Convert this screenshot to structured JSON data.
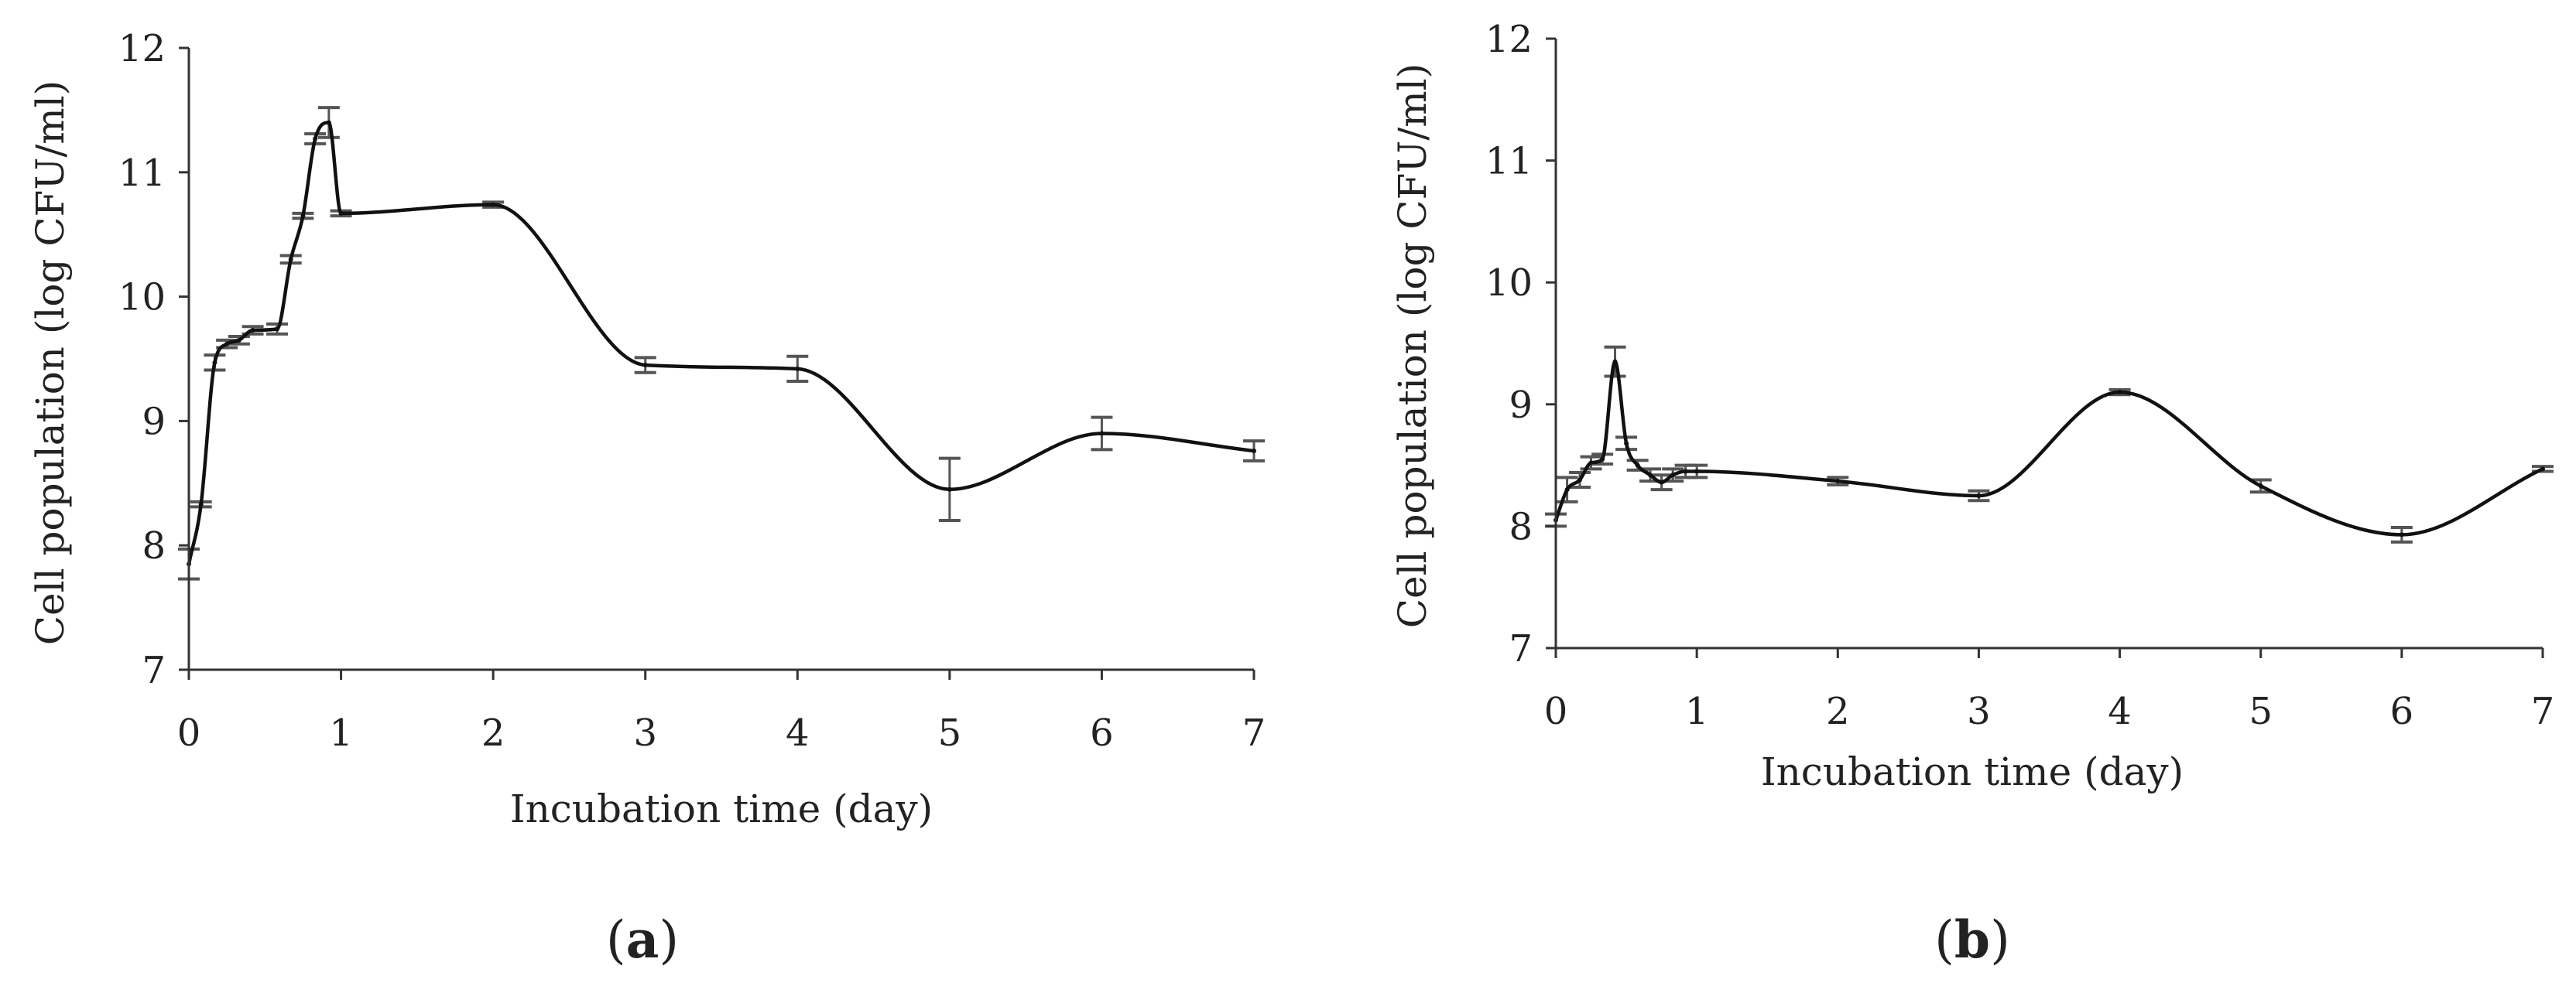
{
  "chart_data": [
    {
      "type": "line",
      "panel_label": {
        "open": "(",
        "letter": "a",
        "close": ")"
      },
      "xlabel": "Incubation time (day)",
      "ylabel": "Cell population (log CFU/ml)",
      "xlim": [
        0,
        7
      ],
      "ylim": [
        7,
        12
      ],
      "xticks": [
        "0",
        "1",
        "2",
        "3",
        "4",
        "5",
        "6",
        "7"
      ],
      "yticks": [
        "7",
        "8",
        "9",
        "10",
        "11",
        "12"
      ],
      "grid": false,
      "legend": "none",
      "series": [
        {
          "points": [
            {
              "x": 0,
              "y": 7.85,
              "err": 0.12
            },
            {
              "x": 0.08,
              "y": 8.33,
              "err": 0.02
            },
            {
              "x": 0.17,
              "y": 9.47,
              "err": 0.06
            },
            {
              "x": 0.25,
              "y": 9.62,
              "err": 0.03
            },
            {
              "x": 0.33,
              "y": 9.65,
              "err": 0.03
            },
            {
              "x": 0.42,
              "y": 9.73,
              "err": 0.03
            },
            {
              "x": 0.58,
              "y": 9.74,
              "err": 0.04
            },
            {
              "x": 0.67,
              "y": 10.3,
              "err": 0.03
            },
            {
              "x": 0.75,
              "y": 10.65,
              "err": 0.02
            },
            {
              "x": 0.83,
              "y": 11.27,
              "err": 0.04
            },
            {
              "x": 0.92,
              "y": 11.4,
              "err": 0.12
            },
            {
              "x": 1,
              "y": 10.67,
              "err": 0.02
            },
            {
              "x": 2,
              "y": 10.74,
              "err": 0.02
            },
            {
              "x": 3,
              "y": 9.45,
              "err": 0.06
            },
            {
              "x": 4,
              "y": 9.42,
              "err": 0.1
            },
            {
              "x": 5,
              "y": 8.45,
              "err": 0.25
            },
            {
              "x": 6,
              "y": 8.9,
              "err": 0.13
            },
            {
              "x": 7,
              "y": 8.76,
              "err": 0.08
            }
          ]
        }
      ]
    },
    {
      "type": "line",
      "panel_label": {
        "open": "(",
        "letter": "b",
        "close": ")"
      },
      "xlabel": "Incubation time (day)",
      "ylabel": "Cell population (log CFU/ml)",
      "xlim": [
        0,
        7
      ],
      "ylim": [
        7,
        12
      ],
      "xticks": [
        "0",
        "1",
        "2",
        "3",
        "4",
        "5",
        "6",
        "7"
      ],
      "yticks": [
        "7",
        "8",
        "9",
        "10",
        "11",
        "12"
      ],
      "grid": false,
      "legend": "none",
      "series": [
        {
          "points": [
            {
              "x": 0,
              "y": 8.05,
              "err": 0.05
            },
            {
              "x": 0.08,
              "y": 8.3,
              "err": 0.1
            },
            {
              "x": 0.17,
              "y": 8.38,
              "err": 0.06
            },
            {
              "x": 0.25,
              "y": 8.52,
              "err": 0.05
            },
            {
              "x": 0.33,
              "y": 8.55,
              "err": 0.04
            },
            {
              "x": 0.42,
              "y": 9.35,
              "err": 0.12
            },
            {
              "x": 0.5,
              "y": 8.68,
              "err": 0.05
            },
            {
              "x": 0.58,
              "y": 8.5,
              "err": 0.04
            },
            {
              "x": 0.67,
              "y": 8.42,
              "err": 0.05
            },
            {
              "x": 0.75,
              "y": 8.36,
              "err": 0.06
            },
            {
              "x": 0.83,
              "y": 8.42,
              "err": 0.05
            },
            {
              "x": 0.92,
              "y": 8.45,
              "err": 0.05
            },
            {
              "x": 1,
              "y": 8.45,
              "err": 0.05
            },
            {
              "x": 2,
              "y": 8.37,
              "err": 0.03
            },
            {
              "x": 3,
              "y": 8.25,
              "err": 0.04
            },
            {
              "x": 4,
              "y": 9.1,
              "err": 0.02
            },
            {
              "x": 5,
              "y": 8.33,
              "err": 0.05
            },
            {
              "x": 6,
              "y": 7.93,
              "err": 0.06
            },
            {
              "x": 7,
              "y": 8.47,
              "err": 0.02
            }
          ]
        }
      ]
    }
  ]
}
